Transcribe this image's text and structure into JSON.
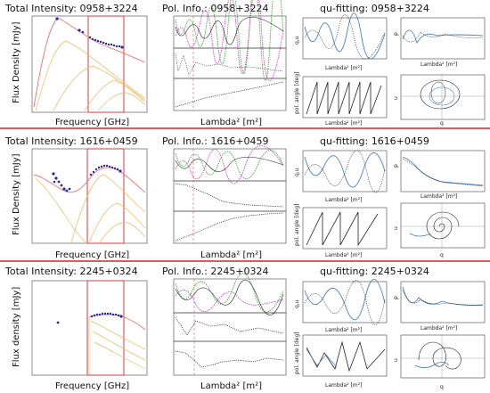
{
  "panels": [
    {
      "ti_title": "Total Intensity: 0958+3224",
      "pol_title": "Pol. Info.: 0958+3224",
      "qu_title": "qu-fitting: 0958+3224",
      "ti_ylabel": "Flux Density [mJy]",
      "ti_xlabel": "Frequency [GHz]",
      "pol_xlabel": "Lambda² [m²]",
      "qu_left_top_ylabel": "q,u",
      "qu_left_bottom_ylabel": "pol. angle [deg]",
      "qu_left_xlabel": "Lambda² [m²]",
      "qu_right_top_ylabel": "p",
      "qu_right_top_xlabel": "Lambda² [m²]",
      "qu_right_bottom_ylabel": "u",
      "qu_right_bottom_xlabel": "q"
    },
    {
      "ti_title": "Total Intensity: 1616+0459",
      "pol_title": "Pol. Info.: 1616+0459",
      "qu_title": "qu-fitting: 1616+0459",
      "ti_ylabel": "Flux Density [mJy]",
      "ti_xlabel": "Frequency [GHz]",
      "pol_xlabel": "Lambda² [m²]",
      "qu_left_top_ylabel": "q,u",
      "qu_left_bottom_ylabel": "pol. angle [deg]",
      "qu_left_xlabel": "Lambda² [m²]",
      "qu_right_top_ylabel": "p",
      "qu_right_top_xlabel": "Lambda² [m²]",
      "qu_right_bottom_ylabel": "u",
      "qu_right_bottom_xlabel": "q"
    },
    {
      "ti_title": "Total Intensity: 2245+0324",
      "pol_title": "Pol. Info.: 2245+0324",
      "qu_title": "qu-fitting: 2245+0324",
      "ti_ylabel": "Flux density [mJy]",
      "ti_xlabel": "Frequency [GHz]",
      "pol_xlabel": "Lambda² [m²]",
      "qu_left_top_ylabel": "q,u",
      "qu_left_bottom_ylabel": "pol. angle [deg]",
      "qu_left_xlabel": "Lambda² [m²]",
      "qu_right_top_ylabel": "p",
      "qu_right_top_xlabel": "Lambda² [m²]",
      "qu_right_bottom_ylabel": "u",
      "qu_right_bottom_xlabel": "q"
    }
  ],
  "colors": {
    "separator": "#d8232a",
    "highlight_box": "#e05a5a",
    "sed_total": "#f07070",
    "sed_component": "#f0b860",
    "data_points": "#2a2a9a",
    "pol_green": "#2ca02c",
    "pol_magenta": "#d62fd6",
    "fit_blue": "#4a7fc0",
    "model_black": "#222222"
  }
}
